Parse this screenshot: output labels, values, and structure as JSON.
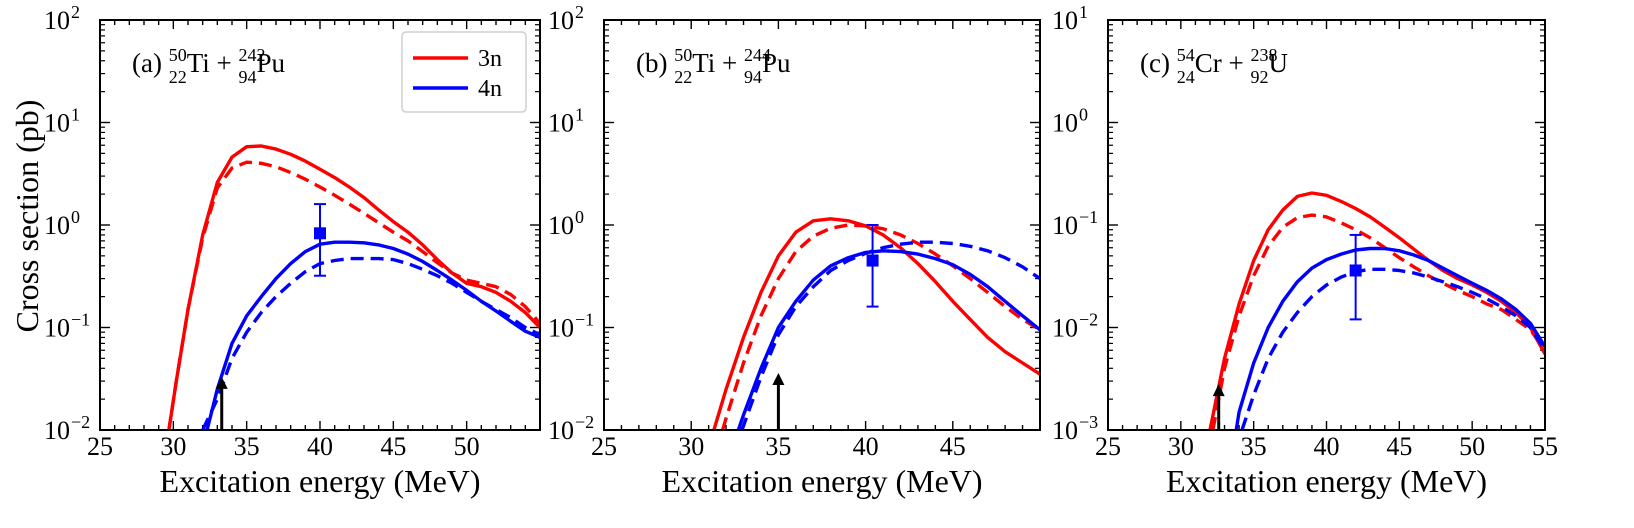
{
  "chart_data": {
    "type": "line",
    "ylabel": "Cross section (pb)",
    "xlabel": "Excitation energy (MeV)",
    "colors": {
      "3n": "#ff0000",
      "4n": "#0000ff",
      "arrow": "#000000"
    },
    "legend": {
      "position": "top-right of panel (a)",
      "entries": [
        "3n",
        "4n"
      ]
    },
    "note": "solid and dashed lines are two calculations; squares with error bars are experimental points; arrows mark a threshold energy",
    "panels": [
      {
        "id": "a",
        "label_prefix": "(a) ",
        "reaction": {
          "p1": {
            "A": "50",
            "Z": "22",
            "el": "Ti"
          },
          "op": " + ",
          "p2": {
            "A": "242",
            "Z": "94",
            "el": "Pu"
          }
        },
        "xlim": [
          25,
          55
        ],
        "xticks": [
          "25",
          "30",
          "35",
          "40",
          "45",
          "50"
        ],
        "ylim_exp": [
          -2,
          2
        ],
        "yticks": [
          {
            "base": "10",
            "exp": "−2"
          },
          {
            "base": "10",
            "exp": "−1"
          },
          {
            "base": "10",
            "exp": "0"
          },
          {
            "base": "10",
            "exp": "1"
          },
          {
            "base": "10",
            "exp": "2"
          }
        ],
        "series": [
          {
            "name": "3n",
            "style": "solid",
            "color": "#ff0000",
            "x": [
              29.7,
              30.2,
              31,
              32,
              33,
              34,
              35,
              36,
              37,
              38,
              39,
              40,
              41,
              42,
              43,
              44,
              45,
              46,
              47,
              48,
              49,
              50,
              51,
              52,
              53,
              54,
              55
            ],
            "y": [
              0.01,
              0.03,
              0.15,
              0.8,
              2.6,
              4.6,
              5.8,
              5.9,
              5.5,
              4.9,
              4.2,
              3.5,
              2.9,
              2.35,
              1.85,
              1.4,
              1.08,
              0.85,
              0.64,
              0.46,
              0.34,
              0.27,
              0.25,
              0.22,
              0.18,
              0.14,
              0.1
            ]
          },
          {
            "name": "3n",
            "style": "dashed",
            "color": "#ff0000",
            "x": [
              29.7,
              30.2,
              31,
              32,
              33,
              34,
              35,
              36,
              37,
              38,
              39,
              40,
              41,
              42,
              43,
              44,
              45,
              46,
              47,
              48,
              49,
              50,
              51,
              52,
              53,
              54,
              55
            ],
            "y": [
              0.01,
              0.03,
              0.15,
              0.75,
              2.3,
              3.6,
              4.1,
              4.0,
              3.7,
              3.25,
              2.8,
              2.35,
              1.95,
              1.6,
              1.3,
              1.05,
              0.85,
              0.7,
              0.55,
              0.43,
              0.34,
              0.29,
              0.27,
              0.25,
              0.21,
              0.16,
              0.11
            ]
          },
          {
            "name": "4n",
            "style": "solid",
            "color": "#0000ff",
            "x": [
              32.3,
              33,
              34,
              35,
              36,
              37,
              38,
              39,
              40,
              41,
              42,
              43,
              44,
              45,
              46,
              47,
              48,
              49,
              50,
              51,
              52,
              53,
              54,
              55
            ],
            "y": [
              0.01,
              0.025,
              0.07,
              0.13,
              0.2,
              0.3,
              0.42,
              0.55,
              0.65,
              0.68,
              0.68,
              0.67,
              0.64,
              0.59,
              0.52,
              0.44,
              0.36,
              0.29,
              0.23,
              0.18,
              0.145,
              0.115,
              0.092,
              0.08
            ]
          },
          {
            "name": "4n",
            "style": "dashed",
            "color": "#0000ff",
            "x": [
              32.0,
              33,
              34,
              35,
              36,
              37,
              38,
              39,
              40,
              41,
              42,
              43,
              44,
              45,
              46,
              47,
              48,
              49,
              50,
              51,
              52,
              53,
              54,
              55
            ],
            "y": [
              0.01,
              0.02,
              0.05,
              0.09,
              0.14,
              0.2,
              0.27,
              0.35,
              0.42,
              0.45,
              0.47,
              0.47,
              0.47,
              0.46,
              0.42,
              0.37,
              0.32,
              0.27,
              0.22,
              0.18,
              0.15,
              0.125,
              0.1,
              0.085
            ]
          }
        ],
        "points": [
          {
            "x": 40,
            "y": 0.83,
            "lo": 0.32,
            "hi": 1.6,
            "color": "#0000ff"
          }
        ],
        "arrow": {
          "x": 33.3,
          "y_top": 0.033
        }
      },
      {
        "id": "b",
        "label_prefix": "(b) ",
        "reaction": {
          "p1": {
            "A": "50",
            "Z": "22",
            "el": "Ti"
          },
          "op": " + ",
          "p2": {
            "A": "244",
            "Z": "94",
            "el": "Pu"
          }
        },
        "xlim": [
          25,
          50
        ],
        "xticks": [
          "25",
          "30",
          "35",
          "40",
          "45"
        ],
        "ylim_exp": [
          -2,
          2
        ],
        "yticks": [
          {
            "base": "10",
            "exp": "−2"
          },
          {
            "base": "10",
            "exp": "−1"
          },
          {
            "base": "10",
            "exp": "0"
          },
          {
            "base": "10",
            "exp": "1"
          },
          {
            "base": "10",
            "exp": "2"
          }
        ],
        "series": [
          {
            "name": "3n",
            "style": "solid",
            "color": "#ff0000",
            "x": [
              31.3,
              32,
              33,
              34,
              35,
              36,
              37,
              38,
              39,
              40,
              41,
              42,
              43,
              44,
              45,
              46,
              47,
              48,
              49,
              50
            ],
            "y": [
              0.01,
              0.025,
              0.08,
              0.22,
              0.5,
              0.85,
              1.1,
              1.15,
              1.1,
              0.98,
              0.8,
              0.6,
              0.42,
              0.28,
              0.18,
              0.12,
              0.08,
              0.058,
              0.045,
              0.035
            ]
          },
          {
            "name": "3n",
            "style": "dashed",
            "color": "#ff0000",
            "x": [
              31.8,
              32,
              33,
              34,
              35,
              36,
              37,
              38,
              39,
              40,
              41,
              42,
              43,
              44,
              45,
              46,
              47,
              48,
              49,
              50
            ],
            "y": [
              0.01,
              0.013,
              0.045,
              0.13,
              0.3,
              0.55,
              0.78,
              0.93,
              1.0,
              0.98,
              0.92,
              0.8,
              0.66,
              0.52,
              0.4,
              0.3,
              0.22,
              0.16,
              0.12,
              0.095
            ]
          },
          {
            "name": "4n",
            "style": "solid",
            "color": "#0000ff",
            "x": [
              32.7,
              33,
              34,
              35,
              36,
              37,
              38,
              39,
              40,
              41,
              42,
              43,
              44,
              45,
              46,
              47,
              48,
              49,
              50
            ],
            "y": [
              0.01,
              0.014,
              0.04,
              0.1,
              0.18,
              0.29,
              0.4,
              0.48,
              0.54,
              0.56,
              0.55,
              0.52,
              0.47,
              0.41,
              0.33,
              0.25,
              0.18,
              0.13,
              0.095
            ]
          },
          {
            "name": "4n",
            "style": "dashed",
            "color": "#0000ff",
            "x": [
              32.9,
              33,
              34,
              35,
              36,
              37,
              38,
              39,
              40,
              41,
              42,
              43,
              44,
              45,
              46,
              47,
              48,
              49,
              50
            ],
            "y": [
              0.01,
              0.011,
              0.033,
              0.085,
              0.16,
              0.25,
              0.36,
              0.45,
              0.53,
              0.6,
              0.65,
              0.68,
              0.68,
              0.66,
              0.62,
              0.56,
              0.48,
              0.39,
              0.3
            ]
          }
        ],
        "points": [
          {
            "x": 40.4,
            "y": 0.45,
            "lo": 0.16,
            "hi": 1.0,
            "color": "#0000ff"
          }
        ],
        "arrow": {
          "x": 35.0,
          "y_top": 0.036
        }
      },
      {
        "id": "c",
        "label_prefix": "(c) ",
        "reaction": {
          "p1": {
            "A": "54",
            "Z": "24",
            "el": "Cr"
          },
          "op": " + ",
          "p2": {
            "A": "238",
            "Z": "92",
            "el": "U"
          }
        },
        "xlim": [
          25,
          55
        ],
        "xticks": [
          "25",
          "30",
          "35",
          "40",
          "45",
          "50",
          "55"
        ],
        "ylim_exp": [
          -3,
          1
        ],
        "yticks": [
          {
            "base": "10",
            "exp": "−3"
          },
          {
            "base": "10",
            "exp": "−2"
          },
          {
            "base": "10",
            "exp": "−1"
          },
          {
            "base": "10",
            "exp": "0"
          },
          {
            "base": "10",
            "exp": "1"
          }
        ],
        "series": [
          {
            "name": "3n",
            "style": "solid",
            "color": "#ff0000",
            "x": [
              32.0,
              33,
              34,
              35,
              36,
              37,
              38,
              39,
              40,
              41,
              42,
              43,
              44,
              45,
              46,
              47,
              48,
              49,
              50,
              51,
              52,
              53,
              54,
              55
            ],
            "y": [
              0.001,
              0.005,
              0.017,
              0.045,
              0.09,
              0.14,
              0.19,
              0.205,
              0.195,
              0.17,
              0.145,
              0.12,
              0.095,
              0.075,
              0.058,
              0.045,
              0.036,
              0.03,
              0.026,
              0.022,
              0.018,
              0.014,
              0.01,
              0.0055
            ]
          },
          {
            "name": "3n",
            "style": "dashed",
            "color": "#ff0000",
            "x": [
              32.2,
              33,
              34,
              35,
              36,
              37,
              38,
              39,
              40,
              41,
              42,
              43,
              44,
              45,
              46,
              47,
              48,
              49,
              50,
              51,
              52,
              53,
              54,
              55
            ],
            "y": [
              0.001,
              0.004,
              0.013,
              0.032,
              0.062,
              0.095,
              0.118,
              0.125,
              0.12,
              0.105,
              0.09,
              0.075,
              0.06,
              0.048,
              0.039,
              0.032,
              0.027,
              0.023,
              0.02,
              0.017,
              0.015,
              0.012,
              0.0095,
              0.006
            ]
          },
          {
            "name": "4n",
            "style": "solid",
            "color": "#0000ff",
            "x": [
              33.8,
              34,
              35,
              36,
              37,
              38,
              39,
              40,
              41,
              42,
              43,
              44,
              45,
              46,
              47,
              48,
              49,
              50,
              51,
              52,
              53,
              54,
              55
            ],
            "y": [
              0.001,
              0.0015,
              0.0045,
              0.01,
              0.018,
              0.028,
              0.038,
              0.046,
              0.052,
              0.057,
              0.059,
              0.059,
              0.056,
              0.051,
              0.045,
              0.038,
              0.032,
              0.027,
              0.023,
              0.019,
              0.015,
              0.011,
              0.0065
            ]
          },
          {
            "name": "4n",
            "style": "dashed",
            "color": "#0000ff",
            "x": [
              34.2,
              35,
              36,
              37,
              38,
              39,
              40,
              41,
              42,
              43,
              44,
              45,
              46,
              47,
              48,
              49,
              50,
              51,
              52,
              53,
              54,
              55
            ],
            "y": [
              0.001,
              0.0022,
              0.005,
              0.009,
              0.014,
              0.02,
              0.026,
              0.031,
              0.035,
              0.037,
              0.037,
              0.036,
              0.034,
              0.031,
              0.028,
              0.025,
              0.022,
              0.019,
              0.016,
              0.013,
              0.01,
              0.006
            ]
          }
        ],
        "points": [
          {
            "x": 42,
            "y": 0.036,
            "lo": 0.012,
            "hi": 0.08,
            "color": "#0000ff"
          }
        ],
        "arrow": {
          "x": 32.6,
          "y_top": 0.0028
        }
      }
    ]
  }
}
